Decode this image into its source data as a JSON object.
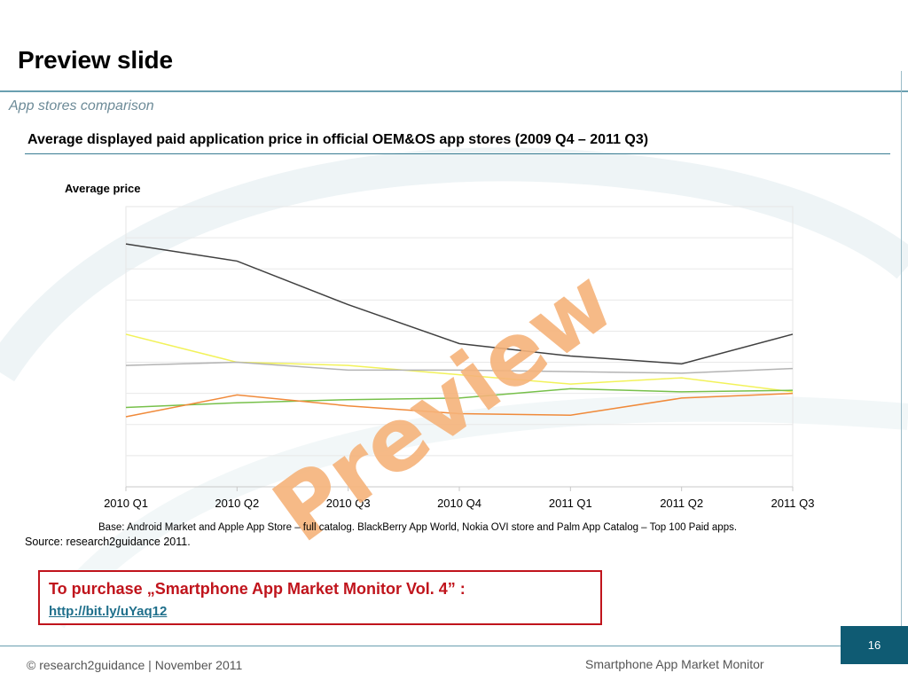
{
  "slide": {
    "title": "Preview slide",
    "subtitle": "App stores comparison",
    "chart_heading": "Average displayed paid application price in official OEM&OS app stores (2009 Q4 – 2011 Q3)",
    "base_note": "Base: Android Market and Apple App Store – full catalog. BlackBerry App World, Nokia OVI store and Palm App Catalog – Top 100 Paid apps.",
    "source_note": "Source: research2guidance 2011.",
    "watermark": "Preview"
  },
  "purchase": {
    "text": "To purchase „Smartphone App Market Monitor Vol. 4” :",
    "link": "http://bit.ly/uYaq12"
  },
  "footer": {
    "left": "© research2guidance | November 2011",
    "right": "Smartphone App Market Monitor",
    "page_number": "16"
  },
  "colors": {
    "accent": "#0f5b73",
    "rule": "#6a9fb0",
    "purchase_red": "#c0141c",
    "watermark": "#f5b27a"
  },
  "chart_data": {
    "type": "line",
    "ylabel": "Average price",
    "xlabel": "",
    "grid": true,
    "categories": [
      "2010 Q1",
      "2010 Q2",
      "2010 Q3",
      "2010 Q4",
      "2011 Q1",
      "2011 Q2",
      "2011 Q3"
    ],
    "ylim": [
      0,
      9
    ],
    "series": [
      {
        "color": "#404040",
        "values": [
          7.8,
          7.25,
          5.85,
          4.6,
          4.2,
          3.95,
          4.9
        ]
      },
      {
        "color": "#f2f25a",
        "values": [
          4.9,
          4.0,
          3.9,
          3.6,
          3.3,
          3.5,
          3.05
        ]
      },
      {
        "color": "#b3b3b3",
        "values": [
          3.9,
          4.0,
          3.75,
          3.75,
          3.7,
          3.65,
          3.8
        ]
      },
      {
        "color": "#77c04a",
        "values": [
          2.55,
          2.7,
          2.8,
          2.85,
          3.15,
          3.05,
          3.1
        ]
      },
      {
        "color": "#f08a3a",
        "values": [
          2.25,
          2.95,
          2.6,
          2.35,
          2.3,
          2.85,
          3.0
        ]
      }
    ]
  }
}
